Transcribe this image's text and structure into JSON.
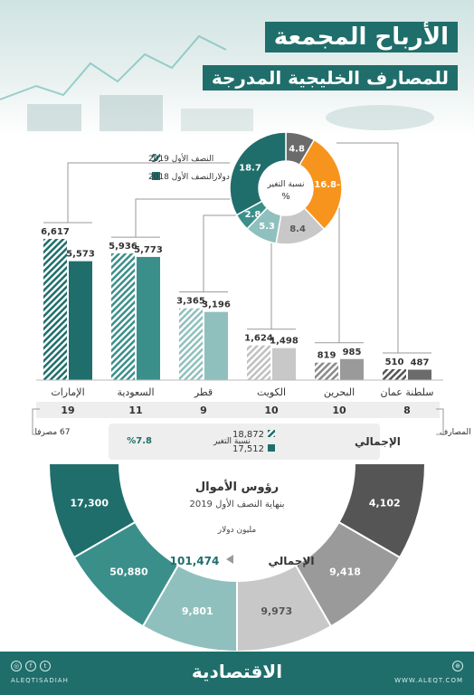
{
  "header": {
    "title": "الأرباح المجمعة",
    "subtitle": "للمصارف الخليجية المدرجة"
  },
  "legend": {
    "h1_2019": "النصف الأول 2019",
    "h1_2018": "النصف الأول 2018",
    "unit": "مليون دولار"
  },
  "colors": {
    "teal_dark": "#1f6e6b",
    "teal_mid": "#3b8f8b",
    "teal_light": "#8fc0bd",
    "gray_dark": "#6b6b6b",
    "gray_mid": "#9a9a9a",
    "gray_light": "#c8c8c8",
    "orange": "#f7941d"
  },
  "chart_data": [
    {
      "type": "bar",
      "categories": [
        "الإمارات",
        "السعودية",
        "قطر",
        "الكويت",
        "البحرين",
        "سلطنة عمان"
      ],
      "series": [
        {
          "name": "النصف الأول 2019",
          "values": [
            6617,
            5936,
            3365,
            1624,
            819,
            510
          ]
        },
        {
          "name": "النصف الأول 2018",
          "values": [
            5573,
            5773,
            3196,
            1498,
            985,
            487
          ]
        }
      ],
      "value_labels_2019": [
        "6,617",
        "5,936",
        "3,365",
        "1,624",
        "819",
        "510"
      ],
      "value_labels_2018": [
        "5,573",
        "5,773",
        "3,196",
        "1,498",
        "985",
        "487"
      ],
      "ylim": [
        0,
        7000
      ],
      "bank_counts": [
        "19",
        "11",
        "9",
        "10",
        "10",
        "8"
      ],
      "bank_count_total": "67 مصرفا",
      "bank_count_label": "عدد المصارف",
      "unit": "مليون دولار",
      "total": {
        "label": "الإجمالي",
        "value_2019": "18,872",
        "value_2018": "17,512",
        "change_label": "نسبة التغير",
        "change_value": "%7.8"
      }
    },
    {
      "type": "pie",
      "title": "نسبة التغير",
      "unit_symbol": "%",
      "slices": [
        {
          "label": "الإمارات",
          "value": 18.7,
          "display": "18.7"
        },
        {
          "label": "السعودية",
          "value": 2.8,
          "display": "2.8"
        },
        {
          "label": "قطر",
          "value": 5.3,
          "display": "5.3"
        },
        {
          "label": "الكويت",
          "value": 8.4,
          "display": "8.4"
        },
        {
          "label": "البحرين",
          "value": -16.8,
          "display": "16.8-"
        },
        {
          "label": "سلطنة عمان",
          "value": 4.8,
          "display": "4.8"
        }
      ]
    },
    {
      "type": "pie",
      "title": "رؤوس الأموال",
      "subtitle": "بنهاية النصف الأول 2019",
      "unit": "مليون دولار",
      "slices": [
        {
          "label": "الإمارات",
          "value": 17300,
          "display": "17,300"
        },
        {
          "label": "السعودية",
          "value": 50880,
          "display": "50,880"
        },
        {
          "label": "قطر",
          "value": 9801,
          "display": "9,801"
        },
        {
          "label": "الكويت",
          "value": 9973,
          "display": "9,973"
        },
        {
          "label": "البحرين",
          "value": 9418,
          "display": "9,418"
        },
        {
          "label": "سلطنة عمان",
          "value": 4102,
          "display": "4,102"
        }
      ],
      "total_label": "الإجمالي",
      "total_value": "101,474"
    }
  ],
  "footer": {
    "logo": "الاقتصادية",
    "handle": "ALEQTISADIAH",
    "website": "WWW.ALEQT.COM"
  }
}
